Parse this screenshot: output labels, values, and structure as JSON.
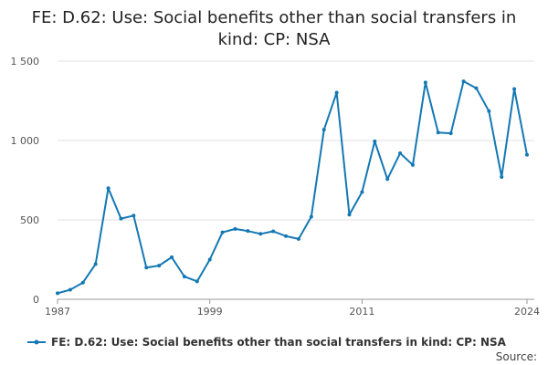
{
  "title": "FE: D.62: Use: Social benefits other than social transfers in kind: CP: NSA",
  "source_label": "Source:",
  "colors": {
    "series": "#1478b4",
    "grid": "#e0e0e0",
    "axis": "#999999"
  },
  "chart_data": {
    "type": "line",
    "title": "FE: D.62: Use: Social benefits other than social transfers in kind: CP: NSA",
    "xlabel": "",
    "ylabel": "",
    "x": [
      1987,
      1988,
      1989,
      1990,
      1991,
      1992,
      1993,
      1994,
      1995,
      1996,
      1997,
      1998,
      1999,
      2000,
      2001,
      2002,
      2003,
      2004,
      2005,
      2006,
      2007,
      2008,
      2009,
      2010,
      2011,
      2012,
      2013,
      2014,
      2015,
      2016,
      2017,
      2018,
      2019,
      2020,
      2021,
      2022,
      2023,
      2024
    ],
    "x_ticks": [
      1987,
      1999,
      2011,
      2024
    ],
    "xlim": [
      1987,
      2024
    ],
    "ylim": [
      0,
      1500
    ],
    "y_ticks": [
      0,
      500,
      1000,
      1500
    ],
    "y_tick_labels": [
      "0",
      "500",
      "1 000",
      "1 500"
    ],
    "grid": true,
    "legend_position": "bottom-left",
    "series": [
      {
        "name": "FE: D.62: Use: Social benefits other than social transfers in kind: CP: NSA",
        "values": [
          38,
          60,
          105,
          222,
          700,
          508,
          527,
          200,
          212,
          265,
          143,
          113,
          250,
          422,
          443,
          430,
          412,
          428,
          398,
          380,
          520,
          1068,
          1302,
          533,
          675,
          995,
          757,
          920,
          846,
          1366,
          1050,
          1045,
          1373,
          1330,
          1185,
          770,
          1325,
          910
        ]
      }
    ]
  }
}
